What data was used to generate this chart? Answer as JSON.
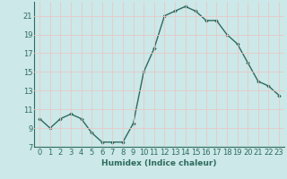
{
  "x": [
    0,
    1,
    2,
    3,
    4,
    5,
    6,
    7,
    8,
    9,
    10,
    11,
    12,
    13,
    14,
    15,
    16,
    17,
    18,
    19,
    20,
    21,
    22,
    23
  ],
  "y": [
    10,
    9,
    10,
    10.5,
    10,
    8.5,
    7.5,
    7.5,
    7.5,
    9.5,
    15,
    17.5,
    21,
    21.5,
    22,
    21.5,
    20.5,
    20.5,
    19,
    18,
    16,
    14,
    13.5,
    12.5
  ],
  "line_color": "#2d6b5e",
  "marker": "D",
  "marker_size": 1.8,
  "bg_color": "#cce8e8",
  "grid_color": "#e8c8c8",
  "xlabel": "Humidex (Indice chaleur)",
  "ylim": [
    7,
    22.5
  ],
  "xlim": [
    -0.5,
    23.5
  ],
  "yticks": [
    7,
    9,
    11,
    13,
    15,
    17,
    19,
    21
  ],
  "xticks": [
    0,
    1,
    2,
    3,
    4,
    5,
    6,
    7,
    8,
    9,
    10,
    11,
    12,
    13,
    14,
    15,
    16,
    17,
    18,
    19,
    20,
    21,
    22,
    23
  ],
  "xlabel_fontsize": 6.5,
  "tick_fontsize": 6,
  "line_width": 1.0
}
